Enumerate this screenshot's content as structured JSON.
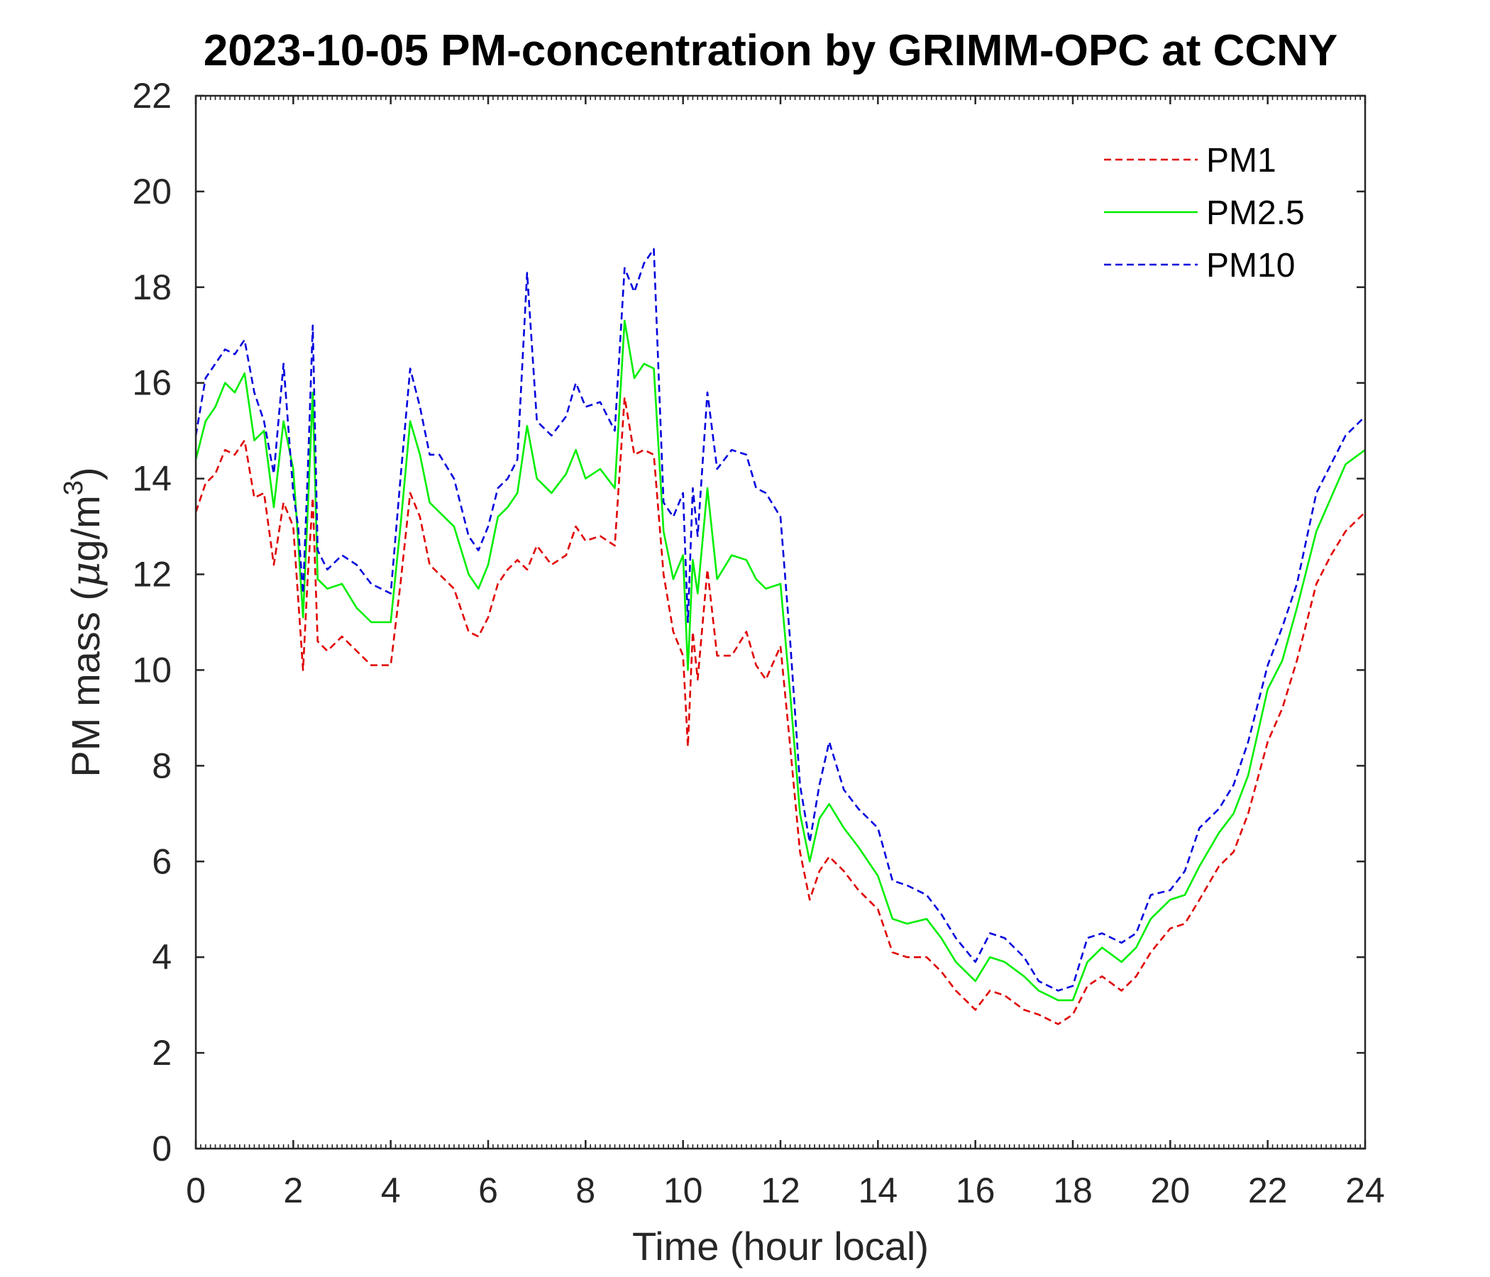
{
  "chart_data": {
    "type": "line",
    "title": "2023-10-05 PM-concentration by GRIMM-OPC at CCNY",
    "xlabel": "Time (hour local)",
    "ylabel_main": "PM mass (",
    "ylabel_mu": "μ",
    "ylabel_unit": "g/m",
    "ylabel_sup": "3",
    "ylabel_close": ")",
    "xlim": [
      0,
      24
    ],
    "ylim": [
      0,
      22
    ],
    "xticks": [
      0,
      2,
      4,
      6,
      8,
      10,
      12,
      14,
      16,
      18,
      20,
      22,
      24
    ],
    "xtick_labels": [
      "0",
      "2",
      "4",
      "6",
      "8",
      "10",
      "12",
      "14",
      "16",
      "18",
      "20",
      "22",
      "24"
    ],
    "yticks": [
      0,
      2,
      4,
      6,
      8,
      10,
      12,
      14,
      16,
      18,
      20,
      22
    ],
    "ytick_labels": [
      "0",
      "2",
      "4",
      "6",
      "8",
      "10",
      "12",
      "14",
      "16",
      "18",
      "20",
      "22"
    ],
    "legend_position": "top-right",
    "grid": false,
    "series": [
      {
        "name": "PM1",
        "color": "#e00000",
        "style": "dashed",
        "x": [
          0,
          0.2,
          0.4,
          0.6,
          0.8,
          1.0,
          1.2,
          1.4,
          1.6,
          1.8,
          2.0,
          2.1,
          2.2,
          2.3,
          2.4,
          2.5,
          2.7,
          3.0,
          3.3,
          3.6,
          4.0,
          4.2,
          4.4,
          4.6,
          4.8,
          5.0,
          5.3,
          5.6,
          5.8,
          6.0,
          6.2,
          6.4,
          6.6,
          6.8,
          7.0,
          7.3,
          7.6,
          7.8,
          8.0,
          8.3,
          8.6,
          8.8,
          9.0,
          9.2,
          9.4,
          9.6,
          9.8,
          10.0,
          10.1,
          10.2,
          10.3,
          10.5,
          10.7,
          11.0,
          11.3,
          11.5,
          11.7,
          12.0,
          12.2,
          12.4,
          12.6,
          12.8,
          13.0,
          13.3,
          13.6,
          14.0,
          14.3,
          14.6,
          15.0,
          15.3,
          15.6,
          16.0,
          16.3,
          16.6,
          17.0,
          17.3,
          17.5,
          17.7,
          18.0,
          18.3,
          18.6,
          19.0,
          19.3,
          19.6,
          20.0,
          20.3,
          20.6,
          21.0,
          21.3,
          21.6,
          22.0,
          22.3,
          22.6,
          23.0,
          23.3,
          23.6,
          24.0
        ],
        "y": [
          13.3,
          13.9,
          14.1,
          14.6,
          14.5,
          14.8,
          13.6,
          13.7,
          12.2,
          13.5,
          13.0,
          11.5,
          10.0,
          12.0,
          13.6,
          10.6,
          10.4,
          10.7,
          10.4,
          10.1,
          10.1,
          11.8,
          13.7,
          13.2,
          12.2,
          12.0,
          11.7,
          10.8,
          10.7,
          11.1,
          11.8,
          12.1,
          12.3,
          12.1,
          12.6,
          12.2,
          12.4,
          13.0,
          12.7,
          12.8,
          12.6,
          15.7,
          14.5,
          14.6,
          14.5,
          12.0,
          10.8,
          10.3,
          8.4,
          10.8,
          9.8,
          12.1,
          10.3,
          10.3,
          10.8,
          10.1,
          9.8,
          10.5,
          8.4,
          6.2,
          5.2,
          5.8,
          6.1,
          5.8,
          5.4,
          5.0,
          4.1,
          4.0,
          4.0,
          3.7,
          3.3,
          2.9,
          3.3,
          3.2,
          2.9,
          2.8,
          2.7,
          2.6,
          2.8,
          3.4,
          3.6,
          3.3,
          3.6,
          4.1,
          4.6,
          4.7,
          5.2,
          5.9,
          6.2,
          7.0,
          8.5,
          9.2,
          10.2,
          11.8,
          12.4,
          12.9,
          13.3
        ]
      },
      {
        "name": "PM2.5",
        "color": "#00ee00",
        "style": "solid",
        "x": [
          0,
          0.2,
          0.4,
          0.6,
          0.8,
          1.0,
          1.2,
          1.4,
          1.6,
          1.8,
          2.0,
          2.1,
          2.2,
          2.3,
          2.4,
          2.5,
          2.7,
          3.0,
          3.3,
          3.6,
          4.0,
          4.2,
          4.4,
          4.6,
          4.8,
          5.0,
          5.3,
          5.6,
          5.8,
          6.0,
          6.2,
          6.4,
          6.6,
          6.8,
          7.0,
          7.3,
          7.6,
          7.8,
          8.0,
          8.3,
          8.6,
          8.8,
          9.0,
          9.2,
          9.4,
          9.6,
          9.8,
          10.0,
          10.1,
          10.2,
          10.3,
          10.5,
          10.7,
          11.0,
          11.3,
          11.5,
          11.7,
          12.0,
          12.2,
          12.4,
          12.6,
          12.8,
          13.0,
          13.3,
          13.6,
          14.0,
          14.3,
          14.6,
          15.0,
          15.3,
          15.6,
          16.0,
          16.3,
          16.6,
          17.0,
          17.3,
          17.5,
          17.7,
          18.0,
          18.3,
          18.6,
          19.0,
          19.3,
          19.6,
          20.0,
          20.3,
          20.6,
          21.0,
          21.3,
          21.6,
          22.0,
          22.3,
          22.6,
          23.0,
          23.3,
          23.6,
          24.0
        ],
        "y": [
          14.4,
          15.2,
          15.5,
          16.0,
          15.8,
          16.2,
          14.8,
          15.0,
          13.4,
          15.2,
          14.2,
          12.7,
          11.1,
          13.4,
          15.8,
          11.9,
          11.7,
          11.8,
          11.3,
          11.0,
          11.0,
          13.0,
          15.2,
          14.5,
          13.5,
          13.3,
          13.0,
          12.0,
          11.7,
          12.2,
          13.2,
          13.4,
          13.7,
          15.1,
          14.0,
          13.7,
          14.1,
          14.6,
          14.0,
          14.2,
          13.8,
          17.3,
          16.1,
          16.4,
          16.3,
          12.9,
          11.9,
          12.4,
          10.0,
          12.3,
          11.6,
          13.8,
          11.9,
          12.4,
          12.3,
          11.9,
          11.7,
          11.8,
          9.5,
          7.0,
          6.0,
          6.9,
          7.2,
          6.7,
          6.3,
          5.7,
          4.8,
          4.7,
          4.8,
          4.4,
          3.9,
          3.5,
          4.0,
          3.9,
          3.6,
          3.3,
          3.2,
          3.1,
          3.1,
          3.9,
          4.2,
          3.9,
          4.2,
          4.8,
          5.2,
          5.3,
          5.9,
          6.6,
          7.0,
          7.8,
          9.6,
          10.2,
          11.3,
          12.9,
          13.6,
          14.3,
          14.6
        ]
      },
      {
        "name": "PM10",
        "color": "#0000dd",
        "style": "dashed",
        "x": [
          0,
          0.2,
          0.4,
          0.6,
          0.8,
          1.0,
          1.2,
          1.4,
          1.6,
          1.8,
          2.0,
          2.1,
          2.2,
          2.3,
          2.4,
          2.5,
          2.7,
          3.0,
          3.3,
          3.6,
          4.0,
          4.2,
          4.4,
          4.6,
          4.8,
          5.0,
          5.3,
          5.6,
          5.8,
          6.0,
          6.2,
          6.4,
          6.6,
          6.8,
          7.0,
          7.3,
          7.6,
          7.8,
          8.0,
          8.3,
          8.6,
          8.8,
          9.0,
          9.2,
          9.4,
          9.6,
          9.8,
          10.0,
          10.1,
          10.2,
          10.3,
          10.5,
          10.7,
          11.0,
          11.3,
          11.5,
          11.7,
          12.0,
          12.2,
          12.4,
          12.6,
          12.8,
          13.0,
          13.3,
          13.6,
          14.0,
          14.3,
          14.6,
          15.0,
          15.3,
          15.6,
          16.0,
          16.3,
          16.6,
          17.0,
          17.3,
          17.5,
          17.7,
          18.0,
          18.3,
          18.6,
          19.0,
          19.3,
          19.6,
          20.0,
          20.3,
          20.6,
          21.0,
          21.3,
          21.6,
          22.0,
          22.3,
          22.6,
          23.0,
          23.3,
          23.6,
          24.0
        ],
        "y": [
          14.9,
          16.1,
          16.4,
          16.7,
          16.6,
          16.9,
          15.8,
          15.2,
          14.1,
          16.4,
          13.7,
          13.0,
          11.6,
          14.2,
          17.2,
          12.5,
          12.1,
          12.4,
          12.2,
          11.8,
          11.6,
          14.0,
          16.3,
          15.5,
          14.5,
          14.5,
          14.0,
          12.8,
          12.5,
          13.0,
          13.8,
          14.0,
          14.4,
          18.3,
          15.2,
          14.9,
          15.3,
          16.0,
          15.5,
          15.6,
          15.0,
          18.4,
          17.9,
          18.5,
          18.8,
          13.5,
          13.2,
          13.7,
          11.0,
          13.8,
          12.8,
          15.8,
          14.2,
          14.6,
          14.5,
          13.8,
          13.7,
          13.2,
          10.6,
          7.6,
          6.4,
          7.6,
          8.5,
          7.5,
          7.1,
          6.7,
          5.6,
          5.5,
          5.3,
          4.9,
          4.4,
          3.9,
          4.5,
          4.4,
          4.0,
          3.5,
          3.4,
          3.3,
          3.4,
          4.4,
          4.5,
          4.3,
          4.5,
          5.3,
          5.4,
          5.8,
          6.7,
          7.1,
          7.6,
          8.5,
          10.1,
          10.9,
          11.8,
          13.7,
          14.3,
          14.9,
          15.3
        ]
      }
    ]
  }
}
